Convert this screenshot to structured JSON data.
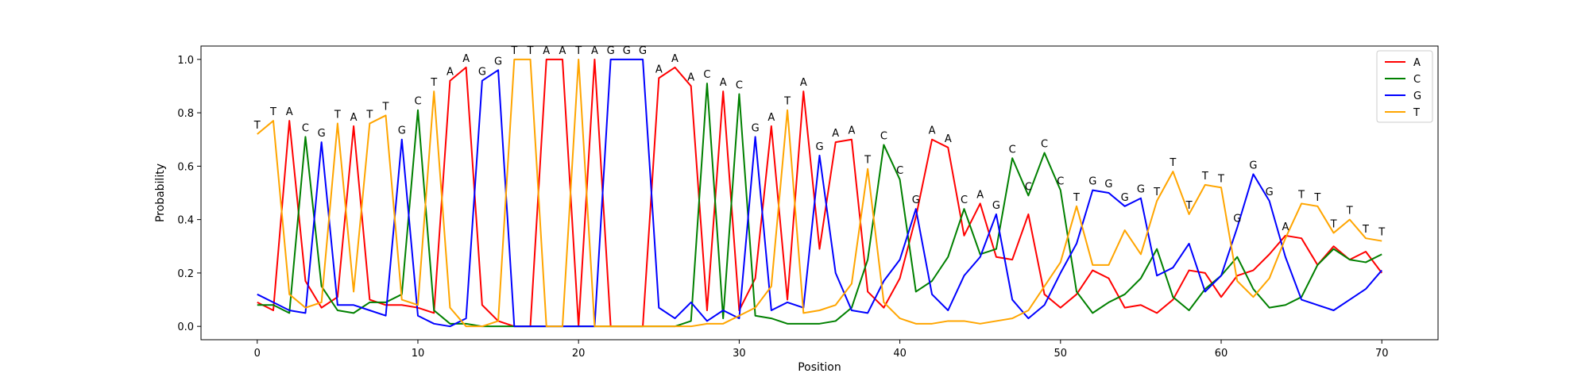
{
  "chart_data": {
    "type": "line",
    "xlabel": "Position",
    "ylabel": "Probability",
    "xlim": [
      -3.5,
      73.5
    ],
    "ylim": [
      -0.05,
      1.05
    ],
    "xticks": [
      0,
      10,
      20,
      30,
      40,
      50,
      60,
      70
    ],
    "yticks": [
      0.0,
      0.2,
      0.4,
      0.6,
      0.8,
      1.0
    ],
    "ytick_labels": [
      "0.0",
      "0.2",
      "0.4",
      "0.6",
      "0.8",
      "1.0"
    ],
    "legend_position": "top-right",
    "grid": false,
    "x": [
      0,
      1,
      2,
      3,
      4,
      5,
      6,
      7,
      8,
      9,
      10,
      11,
      12,
      13,
      14,
      15,
      16,
      17,
      18,
      19,
      20,
      21,
      22,
      23,
      24,
      25,
      26,
      27,
      28,
      29,
      30,
      31,
      32,
      33,
      34,
      35,
      36,
      37,
      38,
      39,
      40,
      41,
      42,
      43,
      44,
      45,
      46,
      47,
      48,
      49,
      50,
      51,
      52,
      53,
      54,
      55,
      56,
      57,
      58,
      59,
      60,
      61,
      62,
      63,
      64,
      65,
      66,
      67,
      68,
      69,
      70
    ],
    "series": [
      {
        "name": "A",
        "color": "#ff0000",
        "values": [
          0.09,
          0.06,
          0.77,
          0.17,
          0.07,
          0.11,
          0.75,
          0.1,
          0.08,
          0.08,
          0.07,
          0.05,
          0.92,
          0.97,
          0.08,
          0.02,
          0.0,
          0.0,
          1.0,
          1.0,
          0.0,
          1.0,
          0.0,
          0.0,
          0.0,
          0.93,
          0.97,
          0.9,
          0.06,
          0.88,
          0.06,
          0.18,
          0.75,
          0.1,
          0.88,
          0.29,
          0.69,
          0.7,
          0.13,
          0.07,
          0.18,
          0.41,
          0.7,
          0.67,
          0.34,
          0.46,
          0.26,
          0.25,
          0.42,
          0.12,
          0.07,
          0.12,
          0.21,
          0.18,
          0.07,
          0.08,
          0.05,
          0.1,
          0.21,
          0.2,
          0.11,
          0.19,
          0.21,
          0.27,
          0.34,
          0.33,
          0.23,
          0.3,
          0.25,
          0.28,
          0.2
        ]
      },
      {
        "name": "C",
        "color": "#008000",
        "values": [
          0.08,
          0.08,
          0.05,
          0.71,
          0.15,
          0.06,
          0.05,
          0.09,
          0.09,
          0.12,
          0.81,
          0.06,
          0.01,
          0.01,
          0.0,
          0.0,
          0.0,
          0.0,
          0.0,
          0.0,
          0.0,
          0.0,
          0.0,
          0.0,
          0.0,
          0.0,
          0.0,
          0.02,
          0.91,
          0.03,
          0.87,
          0.04,
          0.03,
          0.01,
          0.01,
          0.01,
          0.02,
          0.07,
          0.25,
          0.68,
          0.55,
          0.13,
          0.17,
          0.26,
          0.44,
          0.27,
          0.29,
          0.63,
          0.49,
          0.65,
          0.51,
          0.13,
          0.05,
          0.09,
          0.12,
          0.18,
          0.29,
          0.11,
          0.06,
          0.14,
          0.19,
          0.26,
          0.14,
          0.07,
          0.08,
          0.11,
          0.23,
          0.29,
          0.25,
          0.24,
          0.27
        ]
      },
      {
        "name": "G",
        "color": "#0000ff",
        "values": [
          0.12,
          0.09,
          0.06,
          0.05,
          0.69,
          0.08,
          0.08,
          0.06,
          0.04,
          0.7,
          0.04,
          0.01,
          0.0,
          0.03,
          0.92,
          0.96,
          0.0,
          0.0,
          0.0,
          0.0,
          0.0,
          0.0,
          1.0,
          1.0,
          1.0,
          0.07,
          0.03,
          0.09,
          0.02,
          0.06,
          0.03,
          0.71,
          0.06,
          0.09,
          0.07,
          0.64,
          0.2,
          0.06,
          0.05,
          0.17,
          0.25,
          0.44,
          0.12,
          0.06,
          0.19,
          0.26,
          0.42,
          0.1,
          0.03,
          0.08,
          0.2,
          0.31,
          0.51,
          0.5,
          0.45,
          0.48,
          0.19,
          0.22,
          0.31,
          0.13,
          0.19,
          0.37,
          0.57,
          0.47,
          0.26,
          0.1,
          0.08,
          0.06,
          0.1,
          0.14,
          0.21
        ]
      },
      {
        "name": "T",
        "color": "#ffa500",
        "values": [
          0.72,
          0.77,
          0.12,
          0.07,
          0.09,
          0.76,
          0.13,
          0.76,
          0.79,
          0.1,
          0.08,
          0.88,
          0.07,
          0.0,
          0.0,
          0.02,
          1.0,
          1.0,
          0.0,
          0.0,
          1.0,
          0.0,
          0.0,
          0.0,
          0.0,
          0.0,
          0.0,
          0.0,
          0.01,
          0.01,
          0.04,
          0.07,
          0.15,
          0.81,
          0.05,
          0.06,
          0.08,
          0.16,
          0.59,
          0.09,
          0.03,
          0.01,
          0.01,
          0.02,
          0.02,
          0.01,
          0.02,
          0.03,
          0.06,
          0.15,
          0.24,
          0.45,
          0.23,
          0.23,
          0.36,
          0.27,
          0.47,
          0.58,
          0.42,
          0.53,
          0.52,
          0.17,
          0.11,
          0.18,
          0.33,
          0.46,
          0.45,
          0.35,
          0.4,
          0.33,
          0.32
        ]
      }
    ],
    "annotations": [
      "T",
      "T",
      "A",
      "C",
      "G",
      "T",
      "A",
      "T",
      "T",
      "G",
      "C",
      "T",
      "A",
      "A",
      "G",
      "G",
      "T",
      "T",
      "A",
      "A",
      "T",
      "A",
      "G",
      "G",
      "G",
      "A",
      "A",
      "A",
      "C",
      "A",
      "C",
      "G",
      "A",
      "T",
      "A",
      "G",
      "A",
      "A",
      "T",
      "C",
      "C",
      "G",
      "A",
      "A",
      "C",
      "A",
      "G",
      "C",
      "C",
      "C",
      "C",
      "T",
      "G",
      "G",
      "G",
      "G",
      "T",
      "T",
      "T",
      "T",
      "T",
      "G",
      "G",
      "G",
      "A",
      "T",
      "T",
      "T",
      "T",
      "T",
      "T"
    ]
  }
}
